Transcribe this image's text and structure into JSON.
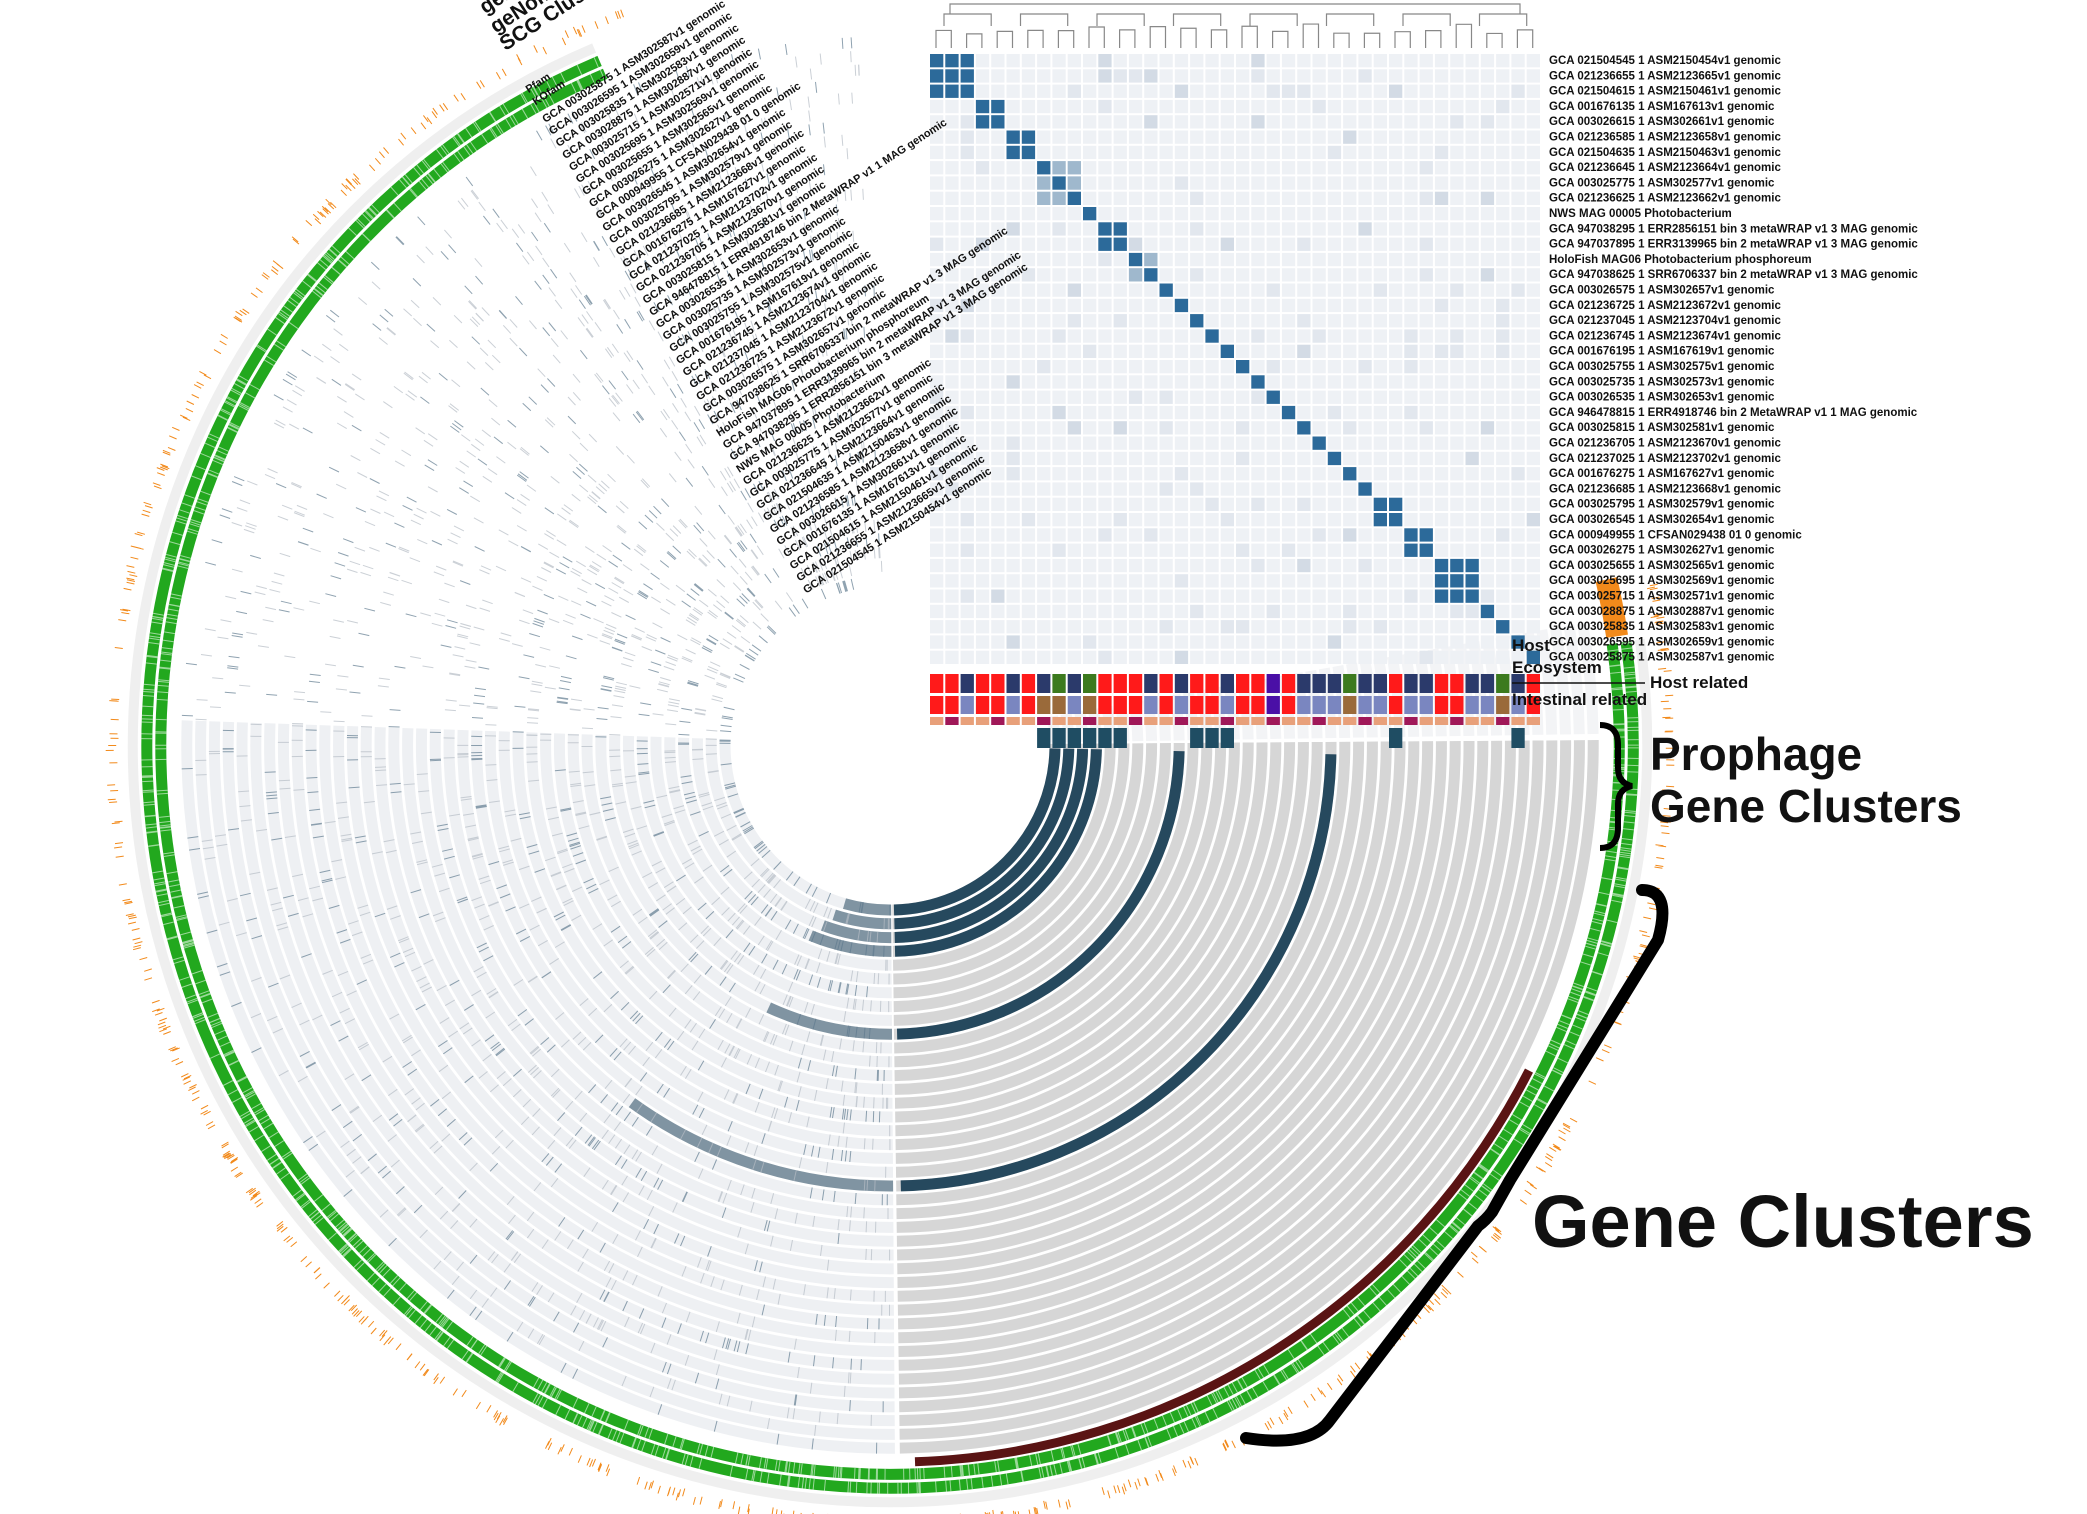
{
  "title": "",
  "labels": {
    "prophage": [
      "Prophage",
      "Gene Clusters"
    ],
    "gene_clusters": "Gene Clusters",
    "host": "Host",
    "ecosystem": "Ecosystem",
    "host_related": "Host related",
    "intestinal_related": "Intestinal related",
    "genomad_functions": "geNomad functions",
    "genomad": "geNomad",
    "scg_clusters": "SCG Clusters",
    "pfam": "Pfam",
    "kofam": "KOfam"
  },
  "genomes": [
    "GCA 021504545 1 ASM2150454v1 genomic",
    "GCA 021236655 1 ASM2123665v1 genomic",
    "GCA 021504615 1 ASM2150461v1 genomic",
    "GCA 001676135 1 ASM167613v1 genomic",
    "GCA 003026615 1 ASM302661v1 genomic",
    "GCA 021236585 1 ASM2123658v1 genomic",
    "GCA 021504635 1 ASM2150463v1 genomic",
    "GCA 021236645 1 ASM2123664v1 genomic",
    "GCA 003025775 1 ASM302577v1 genomic",
    "GCA 021236625 1 ASM2123662v1 genomic",
    "NWS MAG 00005 Photobacterium",
    "GCA 947038295 1 ERR2856151 bin 3 metaWRAP v1 3 MAG genomic",
    "GCA 947037895 1 ERR3139965 bin 2 metaWRAP v1 3 MAG genomic",
    "HoloFish MAG06 Photobacterium phosphoreum",
    "GCA 947038625 1 SRR6706337 bin 2 metaWRAP v1 3 MAG genomic",
    "GCA 003026575 1 ASM302657v1 genomic",
    "GCA 021236725 1 ASM2123672v1 genomic",
    "GCA 021237045 1 ASM2123704v1 genomic",
    "GCA 021236745 1 ASM2123674v1 genomic",
    "GCA 001676195 1 ASM167619v1 genomic",
    "GCA 003025755 1 ASM302575v1 genomic",
    "GCA 003025735 1 ASM302573v1 genomic",
    "GCA 003026535 1 ASM302653v1 genomic",
    "GCA 946478815 1 ERR4918746 bin 2 MetaWRAP v1 1 MAG genomic",
    "GCA 003025815 1 ASM302581v1 genomic",
    "GCA 021236705 1 ASM2123670v1 genomic",
    "GCA 021237025 1 ASM2123702v1 genomic",
    "GCA 001676275 1 ASM167627v1 genomic",
    "GCA 021236685 1 ASM2123668v1 genomic",
    "GCA 003025795 1 ASM302579v1 genomic",
    "GCA 003026545 1 ASM302654v1 genomic",
    "GCA 000949955 1 CFSAN029438 01 0 genomic",
    "GCA 003026275 1 ASM302627v1 genomic",
    "GCA 003025655 1 ASM302565v1 genomic",
    "GCA 003025695 1 ASM302569v1 genomic",
    "GCA 003025715 1 ASM302571v1 genomic",
    "GCA 003028875 1 ASM302887v1 genomic",
    "GCA 003025835 1 ASM302583v1 genomic",
    "GCA 003026595 1 ASM302659v1 genomic",
    "GCA 003025875 1 ASM302587v1 genomic"
  ],
  "colors": {
    "dark_ring": "#26495e",
    "light_ring": "#d6d6d6",
    "green": "#22a81e",
    "orange": "#f28a1b",
    "maroon": "#5a1414",
    "heat_dark": "#2c6a9a",
    "heat_mid": "#9fb8cd",
    "heat_light": "#eef1f5",
    "host_red": "#ff1a1a",
    "host_navy": "#2b3a6b",
    "host_green": "#3c7a1e",
    "host_purple": "#4a0fa6",
    "eco_brown": "#9a6a3a",
    "eco_lav": "#7a86c0",
    "hr_pink": "#e8a07a",
    "hr_plum": "#a01858",
    "int_teal": "#1f4d63"
  }
}
